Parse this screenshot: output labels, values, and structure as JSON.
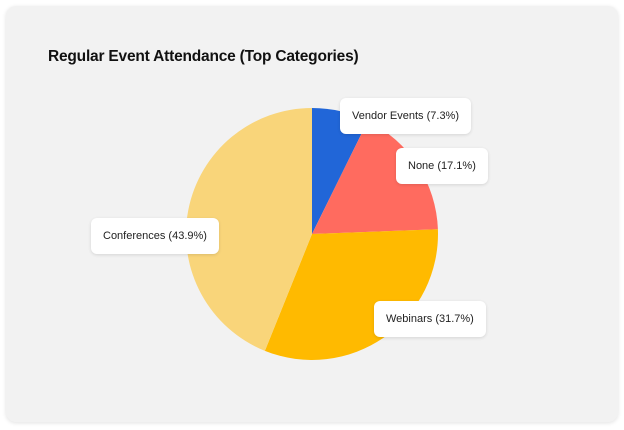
{
  "title": "Regular Event Attendance (Top Categories)",
  "colors": {
    "card_bg": "#f2f2f2",
    "vendor_events": "#2166d8",
    "none": "#ff6b5f",
    "webinars": "#ffba00",
    "conferences": "#f9d57a"
  },
  "labels": {
    "vendor_events": "Vendor Events (7.3%)",
    "none": "None (17.1%)",
    "webinars": "Webinars (31.7%)",
    "conferences": "Conferences (43.9%)"
  },
  "chart_data": {
    "type": "pie",
    "title": "Regular Event Attendance (Top Categories)",
    "categories": [
      "Vendor Events",
      "None",
      "Webinars",
      "Conferences"
    ],
    "values": [
      7.3,
      17.1,
      31.7,
      43.9
    ],
    "colors": [
      "#2166d8",
      "#ff6b5f",
      "#ffba00",
      "#f9d57a"
    ],
    "start_angle": "12 o'clock, clockwise",
    "legend": "none (data labels in callout boxes)"
  }
}
